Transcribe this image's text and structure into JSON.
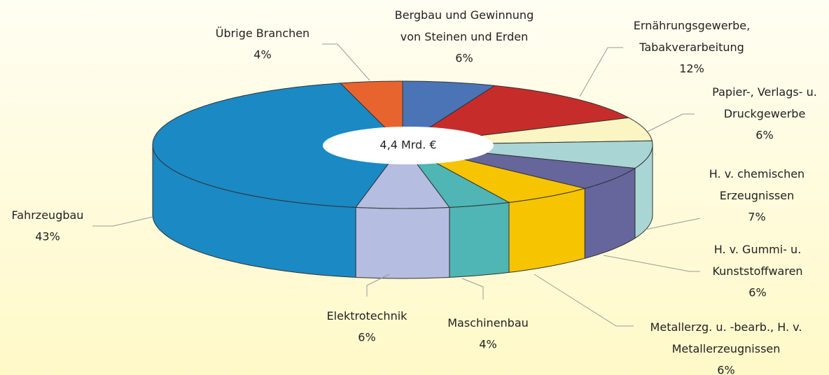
{
  "chart_data": {
    "type": "pie3d",
    "annotation": "4,4 Mrd. €",
    "categories": [
      "Bergbau und Gewinnung\nvon Steinen und Erden",
      "Ernährungsgewerbe,\nTabakverarbeitung",
      "Papier-, Verlags- u.\nDruckgewerbe",
      "H. v. chemischen\nErzeugnissen",
      "H. v. Gummi- u.\nKunststoffwaren",
      "Metallerzg. u. -bearb., H. v.\nMetallerzeugnissen",
      "Maschinenbau",
      "Elektrotechnik",
      "Fahrzeugbau",
      "Übrige Branchen"
    ],
    "values": [
      6,
      12,
      6,
      7,
      6,
      6,
      4,
      6,
      43,
      4
    ],
    "value_labels": [
      "6%",
      "12%",
      "6%",
      "7%",
      "6%",
      "6%",
      "4%",
      "6%",
      "43%",
      "4%"
    ],
    "colors": [
      "#4a74b6",
      "#c62d2a",
      "#faf5c2",
      "#a9d5d5",
      "#66659c",
      "#f6c400",
      "#4fb5b5",
      "#b5bde1",
      "#1a89c4",
      "#e8642f"
    ]
  }
}
